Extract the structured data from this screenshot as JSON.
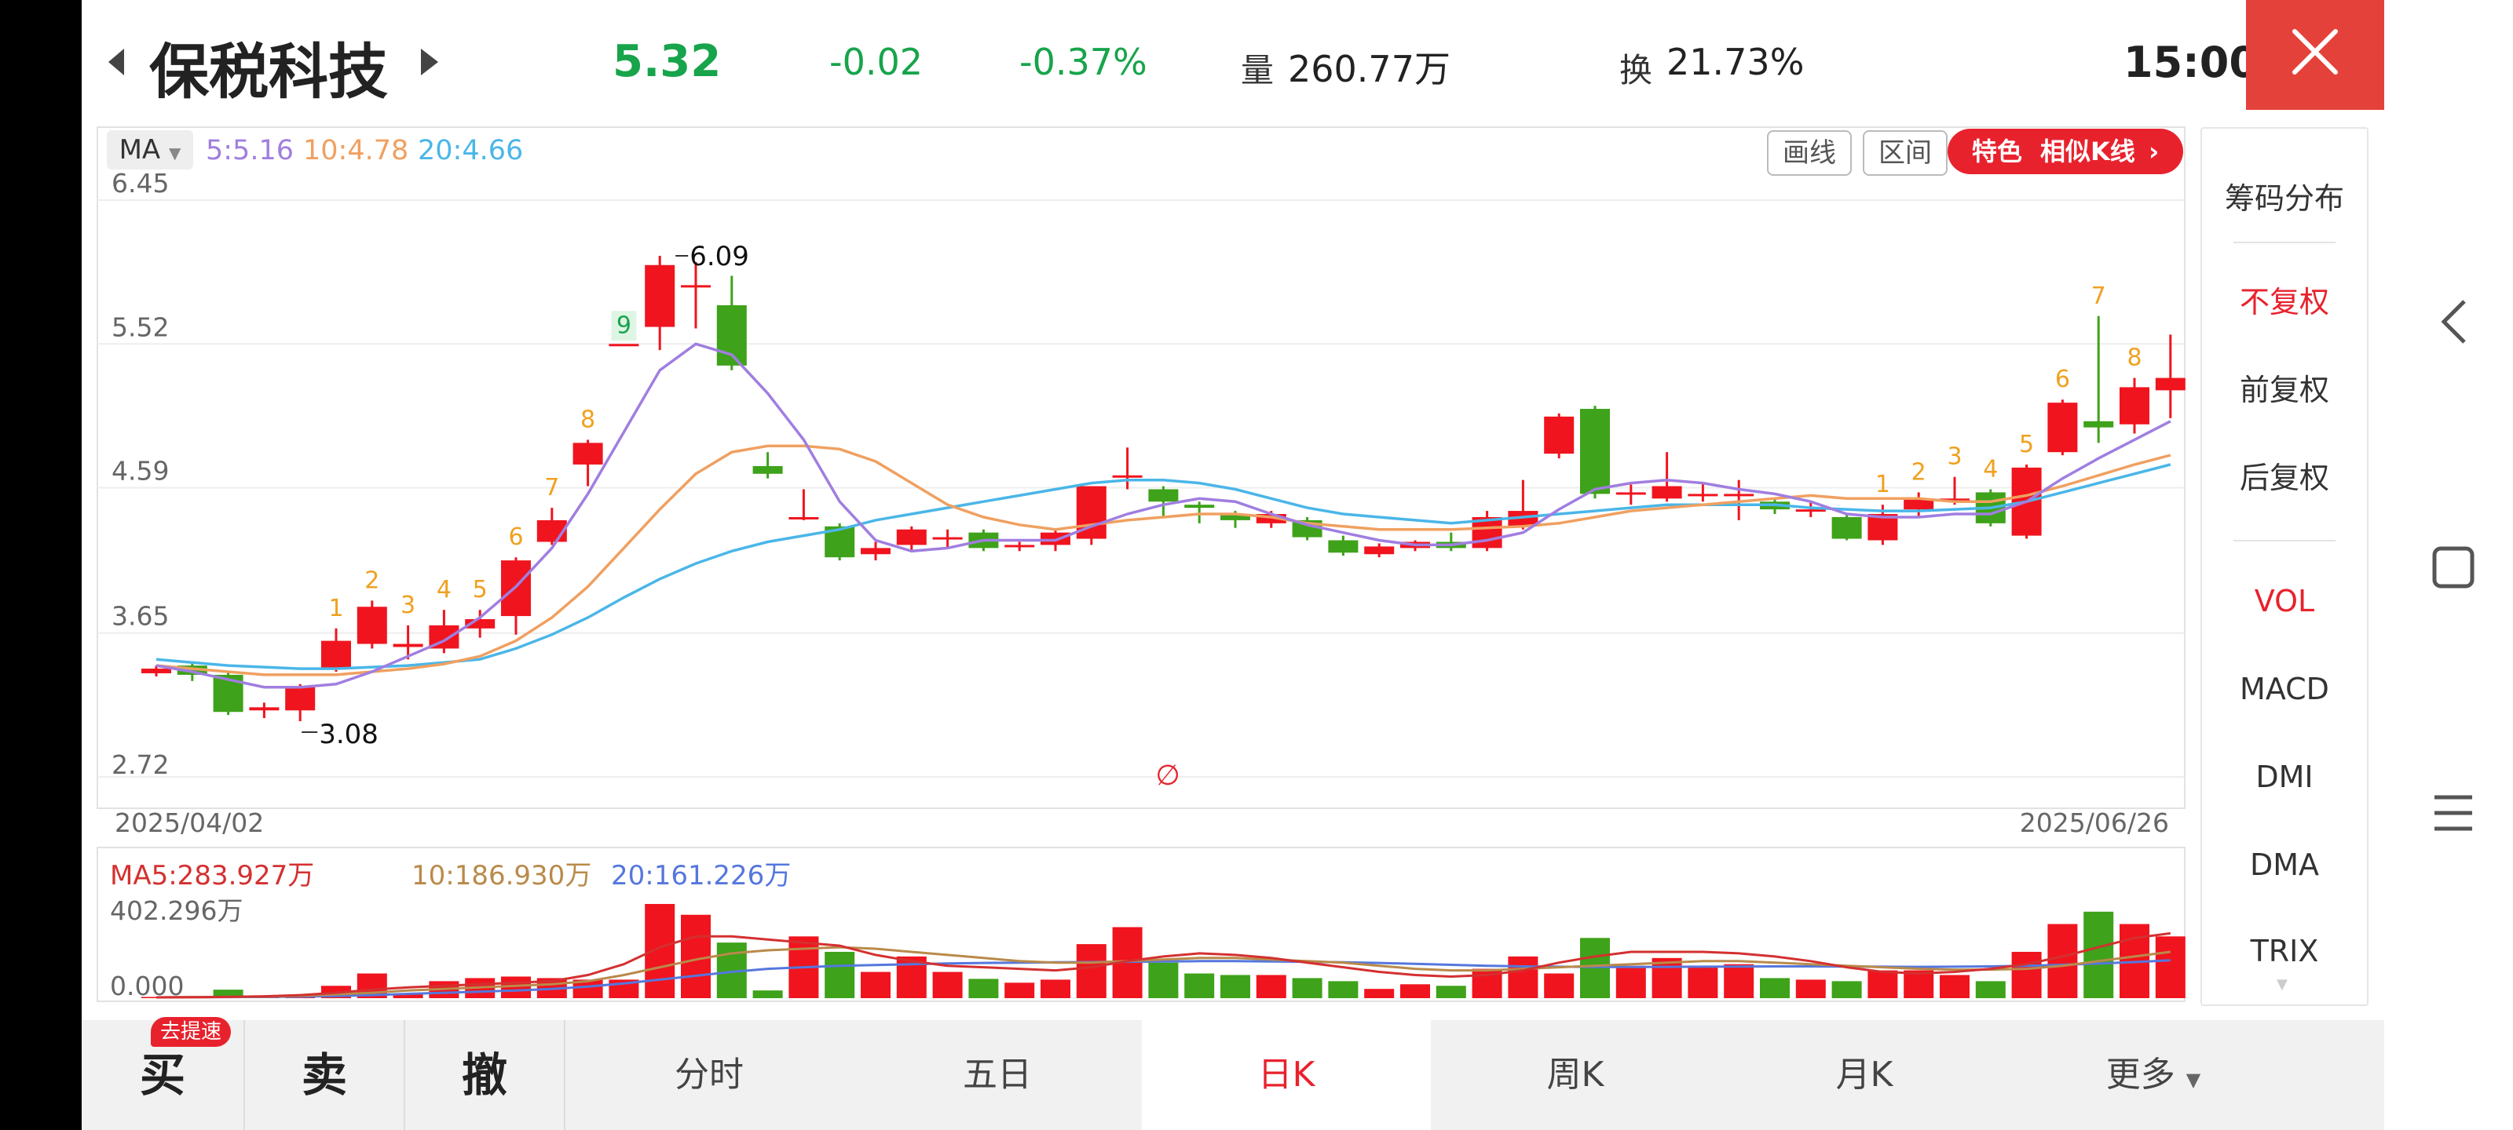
{
  "header": {
    "stock_name": "保税科技",
    "price": "5.32",
    "change": "-0.02",
    "change_pct": "-0.37%",
    "volume_label": "量",
    "volume_value": "260.77万",
    "turnover_label": "换",
    "turnover_value": "21.73%",
    "time": "15:00",
    "colors": {
      "down": "#17a44b",
      "up": "#e8222d",
      "close_bg": "#e5413b"
    }
  },
  "chart_toolbar": {
    "ma_selector": "MA",
    "ma5_label": "5:5.16",
    "ma10_label": "10:4.78",
    "ma20_label": "20:4.66",
    "draw_button": "画线",
    "range_button": "区间",
    "special_badge": "特色",
    "special_label": "相似K线",
    "ma_colors": {
      "ma5": "#a07ee0",
      "ma10": "#f0a060",
      "ma20": "#4ab6e8"
    }
  },
  "right_panel": {
    "items": [
      "筹码分布",
      "不复权",
      "前复权",
      "后复权",
      "VOL",
      "MACD",
      "DMI",
      "DMA",
      "TRIX"
    ],
    "active": [
      "不复权",
      "VOL"
    ]
  },
  "volume_legend": {
    "ma5": "MA5:283.927万",
    "ma10": "10:186.930万",
    "ma20": "20:161.226万",
    "max": "402.296万",
    "min": "0.000"
  },
  "bottom_tabs": {
    "buy": "买",
    "buy_badge": "去提速",
    "sell": "卖",
    "cancel": "撤",
    "tabs": [
      "分时",
      "五日",
      "日K",
      "周K",
      "月K",
      "更多"
    ],
    "active_tab": "日K"
  },
  "chart_data": {
    "type": "candlestick",
    "x_start_label": "2025/04/02",
    "x_end_label": "2025/06/26",
    "y_ticks": [
      "6.45",
      "5.52",
      "4.59",
      "3.65",
      "2.72"
    ],
    "ylim": [
      2.72,
      6.45
    ],
    "high_annotation": "6.09",
    "low_annotation": "3.08",
    "marker_glyph": "∅",
    "candles": [
      {
        "o": 3.39,
        "c": 3.42,
        "h": 3.44,
        "l": 3.37,
        "v": 8
      },
      {
        "o": 3.44,
        "c": 3.38,
        "h": 3.46,
        "l": 3.34,
        "v": 10
      },
      {
        "o": 3.38,
        "c": 3.14,
        "h": 3.4,
        "l": 3.12,
        "v": 55
      },
      {
        "o": 3.15,
        "c": 3.17,
        "h": 3.2,
        "l": 3.1,
        "v": 10
      },
      {
        "o": 3.15,
        "c": 3.3,
        "h": 3.32,
        "l": 3.08,
        "v": 12
      },
      {
        "o": 3.42,
        "c": 3.6,
        "h": 3.68,
        "l": 3.4,
        "v": 80
      },
      {
        "o": 3.58,
        "c": 3.82,
        "h": 3.86,
        "l": 3.55,
        "v": 160
      },
      {
        "o": 3.56,
        "c": 3.58,
        "h": 3.7,
        "l": 3.48,
        "v": 30
      },
      {
        "o": 3.55,
        "c": 3.7,
        "h": 3.8,
        "l": 3.52,
        "v": 110
      },
      {
        "o": 3.68,
        "c": 3.74,
        "h": 3.8,
        "l": 3.62,
        "v": 130
      },
      {
        "o": 3.76,
        "c": 4.12,
        "h": 4.14,
        "l": 3.64,
        "v": 140
      },
      {
        "o": 4.24,
        "c": 4.38,
        "h": 4.46,
        "l": 4.22,
        "v": 130
      },
      {
        "o": 4.74,
        "c": 4.88,
        "h": 4.9,
        "l": 4.6,
        "v": 120
      },
      {
        "o": 5.52,
        "c": 5.52,
        "h": 5.52,
        "l": 5.52,
        "v": 120
      },
      {
        "o": 5.63,
        "c": 6.03,
        "h": 6.09,
        "l": 5.48,
        "v": 610
      },
      {
        "o": 5.9,
        "c": 5.9,
        "h": 6.05,
        "l": 5.62,
        "v": 540
      },
      {
        "o": 5.77,
        "c": 5.38,
        "h": 5.96,
        "l": 5.35,
        "v": 360
      },
      {
        "o": 4.73,
        "c": 4.68,
        "h": 4.82,
        "l": 4.65,
        "v": 50
      },
      {
        "o": 4.4,
        "c": 4.4,
        "h": 4.58,
        "l": 4.38,
        "v": 400
      },
      {
        "o": 4.34,
        "c": 4.14,
        "h": 4.36,
        "l": 4.12,
        "v": 300
      },
      {
        "o": 4.16,
        "c": 4.2,
        "h": 4.24,
        "l": 4.12,
        "v": 170
      },
      {
        "o": 4.22,
        "c": 4.32,
        "h": 4.34,
        "l": 4.18,
        "v": 270
      },
      {
        "o": 4.27,
        "c": 4.27,
        "h": 4.32,
        "l": 4.2,
        "v": 170
      },
      {
        "o": 4.3,
        "c": 4.2,
        "h": 4.32,
        "l": 4.18,
        "v": 125
      },
      {
        "o": 4.22,
        "c": 4.22,
        "h": 4.24,
        "l": 4.18,
        "v": 100
      },
      {
        "o": 4.22,
        "c": 4.3,
        "h": 4.32,
        "l": 4.18,
        "v": 120
      },
      {
        "o": 4.26,
        "c": 4.6,
        "h": 4.6,
        "l": 4.22,
        "v": 350
      },
      {
        "o": 4.67,
        "c": 4.67,
        "h": 4.85,
        "l": 4.58,
        "v": 460
      },
      {
        "o": 4.58,
        "c": 4.5,
        "h": 4.6,
        "l": 4.4,
        "v": 230
      },
      {
        "o": 4.48,
        "c": 4.46,
        "h": 4.5,
        "l": 4.36,
        "v": 160
      },
      {
        "o": 4.42,
        "c": 4.38,
        "h": 4.44,
        "l": 4.33,
        "v": 150
      },
      {
        "o": 4.36,
        "c": 4.42,
        "h": 4.44,
        "l": 4.33,
        "v": 150
      },
      {
        "o": 4.38,
        "c": 4.27,
        "h": 4.4,
        "l": 4.25,
        "v": 130
      },
      {
        "o": 4.25,
        "c": 4.17,
        "h": 4.28,
        "l": 4.15,
        "v": 110
      },
      {
        "o": 4.16,
        "c": 4.21,
        "h": 4.23,
        "l": 4.14,
        "v": 60
      },
      {
        "o": 4.2,
        "c": 4.24,
        "h": 4.25,
        "l": 4.18,
        "v": 90
      },
      {
        "o": 4.24,
        "c": 4.2,
        "h": 4.3,
        "l": 4.18,
        "v": 80
      },
      {
        "o": 4.2,
        "c": 4.4,
        "h": 4.44,
        "l": 4.18,
        "v": 190
      },
      {
        "o": 4.34,
        "c": 4.44,
        "h": 4.64,
        "l": 4.32,
        "v": 270
      },
      {
        "o": 4.81,
        "c": 5.05,
        "h": 5.07,
        "l": 4.78,
        "v": 160
      },
      {
        "o": 5.1,
        "c": 4.55,
        "h": 5.12,
        "l": 4.52,
        "v": 390
      },
      {
        "o": 4.56,
        "c": 4.56,
        "h": 4.61,
        "l": 4.48,
        "v": 210
      },
      {
        "o": 4.52,
        "c": 4.6,
        "h": 4.82,
        "l": 4.5,
        "v": 260
      },
      {
        "o": 4.55,
        "c": 4.55,
        "h": 4.62,
        "l": 4.5,
        "v": 200
      },
      {
        "o": 4.55,
        "c": 4.55,
        "h": 4.64,
        "l": 4.38,
        "v": 220
      },
      {
        "o": 4.5,
        "c": 4.45,
        "h": 4.52,
        "l": 4.42,
        "v": 130
      },
      {
        "o": 4.45,
        "c": 4.45,
        "h": 4.5,
        "l": 4.4,
        "v": 120
      },
      {
        "o": 4.4,
        "c": 4.26,
        "h": 4.42,
        "l": 4.25,
        "v": 110
      },
      {
        "o": 4.25,
        "c": 4.42,
        "h": 4.48,
        "l": 4.22,
        "v": 180
      },
      {
        "o": 4.45,
        "c": 4.52,
        "h": 4.56,
        "l": 4.4,
        "v": 180
      },
      {
        "o": 4.5,
        "c": 4.52,
        "h": 4.66,
        "l": 4.48,
        "v": 150
      },
      {
        "o": 4.56,
        "c": 4.36,
        "h": 4.58,
        "l": 4.34,
        "v": 110
      },
      {
        "o": 4.28,
        "c": 4.72,
        "h": 4.74,
        "l": 4.26,
        "v": 300
      },
      {
        "o": 4.82,
        "c": 5.14,
        "h": 5.16,
        "l": 4.8,
        "v": 480
      },
      {
        "o": 5.02,
        "c": 4.98,
        "h": 5.7,
        "l": 4.88,
        "v": 560
      },
      {
        "o": 5.0,
        "c": 5.24,
        "h": 5.3,
        "l": 4.94,
        "v": 480
      },
      {
        "o": 5.22,
        "c": 5.3,
        "h": 5.58,
        "l": 5.04,
        "v": 400
      }
    ],
    "ma5": [
      3.44,
      3.4,
      3.35,
      3.3,
      3.3,
      3.32,
      3.4,
      3.5,
      3.6,
      3.75,
      3.95,
      4.2,
      4.55,
      4.95,
      5.35,
      5.52,
      5.45,
      5.2,
      4.9,
      4.5,
      4.25,
      4.18,
      4.2,
      4.25,
      4.25,
      4.25,
      4.34,
      4.42,
      4.48,
      4.52,
      4.5,
      4.42,
      4.35,
      4.3,
      4.25,
      4.22,
      4.22,
      4.25,
      4.3,
      4.45,
      4.58,
      4.62,
      4.64,
      4.62,
      4.58,
      4.55,
      4.5,
      4.42,
      4.4,
      4.4,
      4.42,
      4.42,
      4.5,
      4.65,
      4.78,
      4.9,
      5.02
    ],
    "ma10": [
      3.44,
      3.42,
      3.4,
      3.38,
      3.38,
      3.38,
      3.4,
      3.42,
      3.45,
      3.5,
      3.6,
      3.75,
      3.95,
      4.2,
      4.45,
      4.68,
      4.82,
      4.86,
      4.86,
      4.84,
      4.76,
      4.62,
      4.48,
      4.4,
      4.35,
      4.32,
      4.35,
      4.38,
      4.4,
      4.42,
      4.42,
      4.4,
      4.36,
      4.34,
      4.32,
      4.32,
      4.32,
      4.33,
      4.34,
      4.36,
      4.4,
      4.44,
      4.46,
      4.48,
      4.5,
      4.52,
      4.54,
      4.52,
      4.52,
      4.52,
      4.5,
      4.5,
      4.54,
      4.6,
      4.67,
      4.74,
      4.8
    ],
    "ma20": [
      3.48,
      3.46,
      3.44,
      3.43,
      3.42,
      3.42,
      3.43,
      3.44,
      3.46,
      3.48,
      3.55,
      3.64,
      3.75,
      3.88,
      4.0,
      4.1,
      4.18,
      4.24,
      4.28,
      4.32,
      4.38,
      4.42,
      4.46,
      4.5,
      4.54,
      4.58,
      4.62,
      4.64,
      4.64,
      4.62,
      4.58,
      4.52,
      4.46,
      4.42,
      4.4,
      4.38,
      4.36,
      4.38,
      4.4,
      4.42,
      4.44,
      4.46,
      4.48,
      4.48,
      4.48,
      4.48,
      4.46,
      4.45,
      4.44,
      4.44,
      4.45,
      4.46,
      4.5,
      4.56,
      4.62,
      4.68,
      4.74
    ],
    "up_markers": [
      {
        "i": 5,
        "t": "1"
      },
      {
        "i": 6,
        "t": "2"
      },
      {
        "i": 7,
        "t": "3"
      },
      {
        "i": 8,
        "t": "4"
      },
      {
        "i": 9,
        "t": "5"
      },
      {
        "i": 10,
        "t": "6"
      },
      {
        "i": 11,
        "t": "7"
      },
      {
        "i": 12,
        "t": "8"
      },
      {
        "i": 48,
        "t": "1"
      },
      {
        "i": 49,
        "t": "2"
      },
      {
        "i": 50,
        "t": "3"
      },
      {
        "i": 51,
        "t": "4"
      },
      {
        "i": 52,
        "t": "5"
      },
      {
        "i": 53,
        "t": "6"
      },
      {
        "i": 54,
        "t": "7"
      },
      {
        "i": 55,
        "t": "8"
      }
    ],
    "down_markers": [
      {
        "i": 13,
        "t": "9"
      }
    ],
    "vol_ma5": [
      5,
      6,
      8,
      12,
      20,
      35,
      55,
      70,
      80,
      90,
      100,
      110,
      150,
      220,
      330,
      400,
      400,
      380,
      360,
      340,
      280,
      240,
      210,
      200,
      190,
      180,
      200,
      240,
      270,
      290,
      280,
      260,
      230,
      200,
      170,
      150,
      140,
      150,
      180,
      230,
      270,
      300,
      300,
      300,
      290,
      270,
      240,
      200,
      170,
      160,
      170,
      190,
      220,
      270,
      330,
      390,
      420
    ],
    "vol_ma10": [
      5,
      6,
      8,
      10,
      15,
      25,
      35,
      50,
      60,
      70,
      80,
      90,
      110,
      150,
      200,
      250,
      290,
      310,
      320,
      330,
      320,
      300,
      280,
      260,
      240,
      230,
      230,
      240,
      250,
      260,
      260,
      250,
      240,
      230,
      210,
      190,
      180,
      180,
      190,
      200,
      210,
      220,
      230,
      240,
      240,
      230,
      220,
      210,
      200,
      190,
      185,
      185,
      190,
      210,
      240,
      270,
      300
    ],
    "vol_ma20": [
      5,
      6,
      7,
      8,
      10,
      14,
      20,
      28,
      35,
      42,
      50,
      60,
      75,
      95,
      120,
      145,
      170,
      190,
      200,
      210,
      215,
      220,
      225,
      228,
      230,
      232,
      234,
      236,
      238,
      240,
      240,
      238,
      236,
      232,
      228,
      222,
      216,
      210,
      206,
      204,
      202,
      202,
      203,
      204,
      205,
      206,
      206,
      205,
      204,
      203,
      204,
      206,
      210,
      216,
      224,
      234,
      245
    ]
  }
}
